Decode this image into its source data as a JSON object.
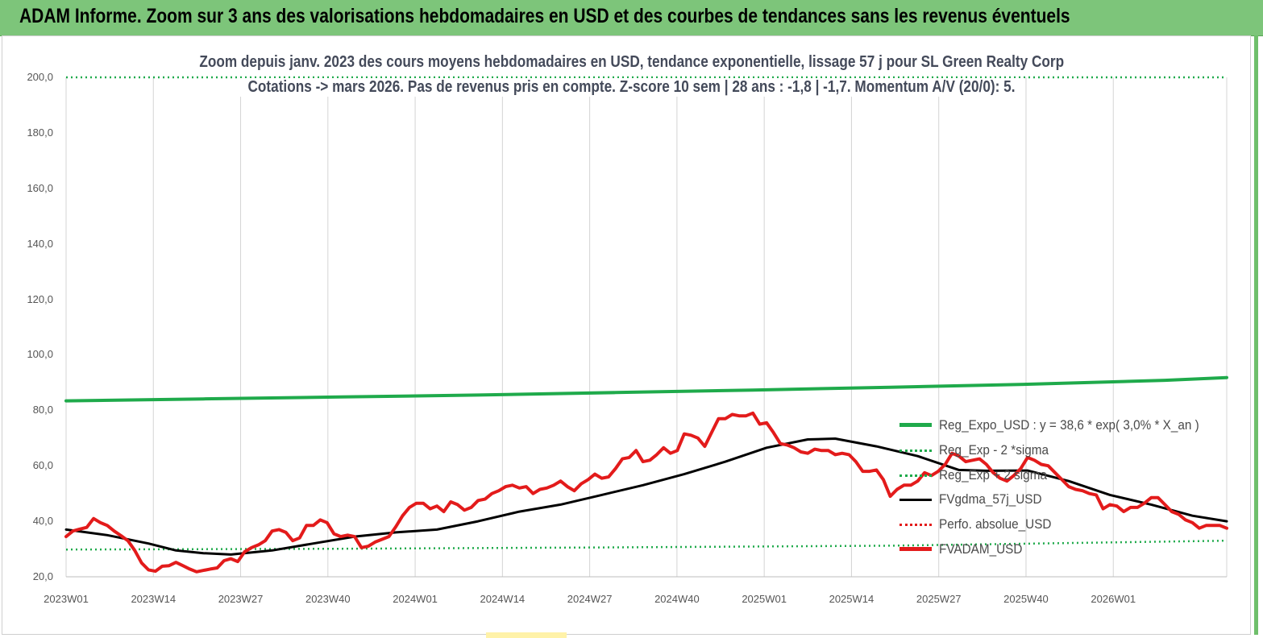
{
  "header": {
    "title": "ADAM Informe. Zoom sur 3 ans des valorisations hebdomadaires en USD et des courbes de tendances sans les revenus éventuels"
  },
  "subtitle": {
    "line1": "Zoom depuis janv. 2023 des cours moyens hebdomadaires en USD, tendance exponentielle, lissage 57 j pour SL  Green Realty Corp",
    "line2": "Cotations -> mars 2026. Pas de revenus pris en  compte. Z-score 10 sem  | 28 ans : -1,8 | -1,7. Momentum A/V (20/0): 5."
  },
  "chart_data": {
    "type": "line",
    "title": "Zoom depuis janv. 2023 des cours moyens hebdomadaires en USD, tendance exponentielle, lissage 57 j pour SL  Green Realty Corp",
    "x_labels": [
      "2023W01",
      "2023W14",
      "2023W27",
      "2023W40",
      "2024W01",
      "2024W14",
      "2024W27",
      "2024W40",
      "2025W01",
      "2025W14",
      "2025W27",
      "2025W40",
      "2026W01"
    ],
    "x_range": [
      0,
      169
    ],
    "y_ticks": [
      "20,0",
      "40,0",
      "60,0",
      "80,0",
      "100,0",
      "120,0",
      "140,0",
      "160,0",
      "180,0",
      "200,0"
    ],
    "ylim": [
      20,
      200
    ],
    "grid": "vertical",
    "legend_position": "right",
    "series": [
      {
        "name": "Reg_Expo_USD : y = 38,6 * exp( 3,0% *  X_an )",
        "color": "#1faa4b",
        "style": "solid-thick",
        "points": [
          [
            0,
            83.4
          ],
          [
            20,
            84.1
          ],
          [
            40,
            84.8
          ],
          [
            60,
            85.5
          ],
          [
            80,
            86.4
          ],
          [
            100,
            87.3
          ],
          [
            120,
            88.3
          ],
          [
            140,
            89.4
          ],
          [
            160,
            90.8
          ],
          [
            169,
            91.8
          ]
        ]
      },
      {
        "name": "Reg_Exp - 2 *sigma",
        "color": "#1faa4b",
        "style": "dotted",
        "points": [
          [
            0,
            29.8
          ],
          [
            40,
            30.1
          ],
          [
            80,
            30.6
          ],
          [
            120,
            31.2
          ],
          [
            169,
            33.0
          ]
        ]
      },
      {
        "name": "Reg_Exp + 2 sigma",
        "color": "#1faa4b",
        "style": "dotted",
        "points": [
          [
            0,
            200.0
          ],
          [
            169,
            200.0
          ]
        ]
      },
      {
        "name": "FVgdma_57j_USD",
        "color": "#000000",
        "style": "solid",
        "points": [
          [
            0,
            37.0
          ],
          [
            6,
            35.0
          ],
          [
            12,
            32.0
          ],
          [
            16,
            29.5
          ],
          [
            20,
            28.5
          ],
          [
            24,
            28.0
          ],
          [
            30,
            29.5
          ],
          [
            36,
            32.0
          ],
          [
            42,
            34.5
          ],
          [
            48,
            36.0
          ],
          [
            54,
            37.0
          ],
          [
            60,
            40.0
          ],
          [
            66,
            43.5
          ],
          [
            72,
            46.0
          ],
          [
            78,
            49.5
          ],
          [
            84,
            53.0
          ],
          [
            90,
            57.0
          ],
          [
            96,
            61.5
          ],
          [
            102,
            66.5
          ],
          [
            108,
            69.5
          ],
          [
            112,
            69.8
          ],
          [
            118,
            67.0
          ],
          [
            124,
            63.5
          ],
          [
            130,
            58.5
          ],
          [
            134,
            58.2
          ],
          [
            140,
            58.3
          ],
          [
            146,
            54.5
          ],
          [
            152,
            49.5
          ],
          [
            158,
            46.0
          ],
          [
            164,
            42.0
          ],
          [
            169,
            40.0
          ]
        ]
      },
      {
        "name": "Perfo. absolue_USD",
        "color": "#e31b1b",
        "style": "dotted",
        "points": []
      },
      {
        "name": "FVADAM_USD",
        "color": "#e31b1b",
        "style": "solid-thick",
        "points": [
          [
            0,
            34.5
          ],
          [
            1,
            36.5
          ],
          [
            2,
            37.2
          ],
          [
            3,
            37.8
          ],
          [
            4,
            41.0
          ],
          [
            5,
            39.5
          ],
          [
            6,
            38.5
          ],
          [
            7,
            36.5
          ],
          [
            8,
            34.8
          ],
          [
            9,
            33.0
          ],
          [
            10,
            29.5
          ],
          [
            11,
            25.0
          ],
          [
            12,
            22.5
          ],
          [
            13,
            22.0
          ],
          [
            14,
            23.8
          ],
          [
            15,
            24.0
          ],
          [
            16,
            25.2
          ],
          [
            17,
            24.0
          ],
          [
            18,
            22.8
          ],
          [
            19,
            21.8
          ],
          [
            20,
            22.3
          ],
          [
            21,
            22.8
          ],
          [
            22,
            23.2
          ],
          [
            23,
            25.8
          ],
          [
            24,
            26.5
          ],
          [
            25,
            25.5
          ],
          [
            26,
            29.0
          ],
          [
            27,
            30.5
          ],
          [
            28,
            31.5
          ],
          [
            29,
            33.0
          ],
          [
            30,
            36.5
          ],
          [
            31,
            37.0
          ],
          [
            32,
            36.0
          ],
          [
            33,
            33.0
          ],
          [
            34,
            34.0
          ],
          [
            35,
            38.5
          ],
          [
            36,
            38.5
          ],
          [
            37,
            40.5
          ],
          [
            38,
            39.5
          ],
          [
            39,
            35.5
          ],
          [
            40,
            34.5
          ],
          [
            41,
            35.0
          ],
          [
            42,
            34.5
          ],
          [
            43,
            30.5
          ],
          [
            44,
            31.0
          ],
          [
            45,
            32.5
          ],
          [
            46,
            33.5
          ],
          [
            47,
            34.5
          ],
          [
            48,
            38.0
          ],
          [
            49,
            42.0
          ],
          [
            50,
            45.0
          ],
          [
            51,
            46.5
          ],
          [
            52,
            46.5
          ],
          [
            53,
            44.5
          ],
          [
            54,
            45.5
          ],
          [
            55,
            43.5
          ],
          [
            56,
            47.0
          ],
          [
            57,
            46.0
          ],
          [
            58,
            44.0
          ],
          [
            59,
            45.0
          ],
          [
            60,
            47.5
          ],
          [
            61,
            48.0
          ],
          [
            62,
            50.0
          ],
          [
            63,
            51.0
          ],
          [
            64,
            52.5
          ],
          [
            65,
            53.0
          ],
          [
            66,
            52.0
          ],
          [
            67,
            52.5
          ],
          [
            68,
            50.0
          ],
          [
            69,
            51.5
          ],
          [
            70,
            52.0
          ],
          [
            71,
            53.0
          ],
          [
            72,
            54.5
          ],
          [
            73,
            52.5
          ],
          [
            74,
            51.0
          ],
          [
            75,
            53.5
          ],
          [
            76,
            55.0
          ],
          [
            77,
            57.0
          ],
          [
            78,
            55.5
          ],
          [
            79,
            56.0
          ],
          [
            80,
            59.0
          ],
          [
            81,
            62.5
          ],
          [
            82,
            63.0
          ],
          [
            83,
            65.5
          ],
          [
            84,
            61.5
          ],
          [
            85,
            62.0
          ],
          [
            86,
            64.0
          ],
          [
            87,
            66.5
          ],
          [
            88,
            64.5
          ],
          [
            89,
            65.5
          ],
          [
            90,
            71.5
          ],
          [
            91,
            71.0
          ],
          [
            92,
            70.0
          ],
          [
            93,
            67.0
          ],
          [
            94,
            72.0
          ],
          [
            95,
            77.0
          ],
          [
            96,
            77.0
          ],
          [
            97,
            78.5
          ],
          [
            98,
            78.0
          ],
          [
            99,
            78.0
          ],
          [
            100,
            79.0
          ],
          [
            101,
            75.0
          ],
          [
            102,
            75.5
          ],
          [
            103,
            72.0
          ],
          [
            104,
            68.0
          ],
          [
            105,
            67.5
          ],
          [
            106,
            66.5
          ],
          [
            107,
            65.0
          ],
          [
            108,
            64.5
          ],
          [
            109,
            66.0
          ],
          [
            110,
            65.5
          ],
          [
            111,
            65.5
          ],
          [
            112,
            64.0
          ],
          [
            113,
            64.5
          ],
          [
            114,
            64.0
          ],
          [
            115,
            61.5
          ],
          [
            116,
            58.0
          ],
          [
            117,
            58.0
          ],
          [
            118,
            58.5
          ],
          [
            119,
            55.0
          ],
          [
            120,
            49.0
          ],
          [
            121,
            51.5
          ],
          [
            122,
            53.0
          ],
          [
            123,
            53.0
          ],
          [
            124,
            54.5
          ],
          [
            125,
            57.5
          ],
          [
            126,
            56.5
          ],
          [
            127,
            58.0
          ],
          [
            128,
            60.5
          ],
          [
            129,
            64.5
          ],
          [
            130,
            63.5
          ],
          [
            131,
            61.5
          ],
          [
            132,
            62.0
          ],
          [
            133,
            62.5
          ],
          [
            134,
            60.5
          ],
          [
            135,
            57.5
          ],
          [
            136,
            55.5
          ],
          [
            137,
            54.5
          ],
          [
            138,
            56.5
          ],
          [
            139,
            59.0
          ],
          [
            140,
            63.0
          ],
          [
            141,
            62.0
          ],
          [
            142,
            60.5
          ],
          [
            143,
            60.0
          ],
          [
            144,
            57.5
          ],
          [
            145,
            55.0
          ],
          [
            146,
            52.5
          ],
          [
            147,
            51.5
          ],
          [
            148,
            51.0
          ],
          [
            149,
            50.0
          ],
          [
            150,
            49.5
          ],
          [
            151,
            44.5
          ],
          [
            152,
            46.0
          ],
          [
            153,
            45.5
          ],
          [
            154,
            43.5
          ],
          [
            155,
            45.0
          ],
          [
            156,
            45.0
          ],
          [
            157,
            46.5
          ],
          [
            158,
            48.5
          ],
          [
            159,
            48.5
          ],
          [
            160,
            46.0
          ],
          [
            161,
            43.5
          ],
          [
            162,
            42.5
          ],
          [
            163,
            40.5
          ],
          [
            164,
            39.5
          ],
          [
            165,
            37.5
          ],
          [
            166,
            38.5
          ],
          [
            167,
            38.5
          ],
          [
            168,
            38.5
          ],
          [
            169,
            37.5
          ]
        ]
      }
    ]
  }
}
